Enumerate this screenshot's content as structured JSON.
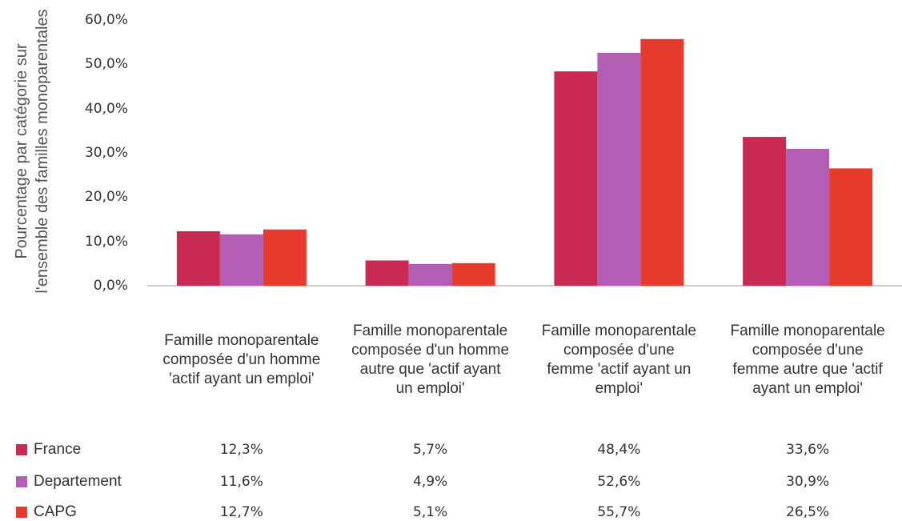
{
  "chart_data": {
    "type": "bar",
    "y_label": "Pourcentage par catégorie sur l'ensemble des familles monoparentales",
    "categories": [
      "Famille monoparentale composée d'un homme 'actif ayant un emploi'",
      "Famille monoparentale composée d'un homme autre que 'actif ayant un emploi'",
      "Famille monoparentale composée d'une femme 'actif ayant un emploi'",
      "Famille monoparentale composée d'une femme autre que 'actif ayant un emploi'"
    ],
    "series": [
      {
        "name": "France",
        "color": "#c92a52",
        "values": [
          12.3,
          5.7,
          48.4,
          33.6
        ],
        "value_labels": [
          "12,3%",
          "5,7%",
          "48,4%",
          "33,6%"
        ]
      },
      {
        "name": "Departement",
        "color": "#b35db5",
        "values": [
          11.6,
          4.9,
          52.6,
          30.9
        ],
        "value_labels": [
          "11,6%",
          "4,9%",
          "52,6%",
          "30,9%"
        ]
      },
      {
        "name": "CAPG",
        "color": "#e8392d",
        "values": [
          12.7,
          5.1,
          55.7,
          26.5
        ],
        "value_labels": [
          "12,7%",
          "5,1%",
          "55,7%",
          "26,5%"
        ]
      }
    ],
    "ylim": [
      0,
      60
    ],
    "yticks": [
      {
        "value": 0,
        "label": "0,0%"
      },
      {
        "value": 10,
        "label": "10,0%"
      },
      {
        "value": 20,
        "label": "20,0%"
      },
      {
        "value": 30,
        "label": "30,0%"
      },
      {
        "value": 40,
        "label": "40,0%"
      },
      {
        "value": 50,
        "label": "50,0%"
      },
      {
        "value": 60,
        "label": "60,0%"
      }
    ],
    "grid": false
  }
}
